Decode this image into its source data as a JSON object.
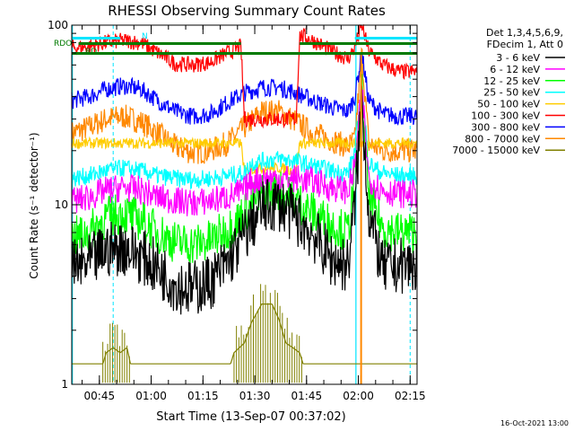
{
  "chart_data": {
    "type": "line",
    "title": "RHESSI Observing Summary Count Rates",
    "xlabel": "Start Time (13-Sep-07 00:37:02)",
    "ylabel": "Count Rate (s⁻¹ detector⁻¹)",
    "yscale": "log",
    "ylim": [
      1,
      100
    ],
    "xlim_minutes": [
      0,
      100
    ],
    "x_ticks": [
      {
        "label": "00:45",
        "minute": 8
      },
      {
        "label": "01:00",
        "minute": 23
      },
      {
        "label": "01:15",
        "minute": 38
      },
      {
        "label": "01:30",
        "minute": 53
      },
      {
        "label": "01:45",
        "minute": 68
      },
      {
        "label": "02:00",
        "minute": 83
      },
      {
        "label": "02:15",
        "minute": 98
      }
    ],
    "y_ticks": [
      {
        "label": "1",
        "value": 1
      },
      {
        "label": "10",
        "value": 10
      },
      {
        "label": "100",
        "value": 100
      }
    ],
    "legend_header": [
      "Det 1,3,4,5,6,9,",
      "FDecim 1, Att 0"
    ],
    "legend_position": "right",
    "timestamp": "16-Oct-2021 13:00",
    "flags": [
      {
        "label": "RDO",
        "color": "#007a00"
      },
      {
        "label": "RD",
        "color": "#007a00"
      },
      {
        "label": "N",
        "color": "#00e5ff"
      }
    ],
    "series": [
      {
        "name": "3 - 6 keV",
        "color": "#000000",
        "x": [
          0,
          5,
          10,
          15,
          20,
          25,
          30,
          35,
          40,
          45,
          50,
          55,
          60,
          65,
          70,
          75,
          80,
          82,
          84,
          86,
          90,
          95,
          100
        ],
        "y": [
          4.4,
          4.7,
          5.6,
          5.8,
          5.2,
          4.4,
          3.6,
          3.4,
          3.7,
          4.7,
          6.8,
          9.5,
          10.2,
          8.5,
          6.8,
          5.0,
          4.6,
          10,
          40,
          9,
          4.4,
          4.6,
          4.6
        ]
      },
      {
        "name": "6 - 12 keV",
        "color": "#ff00ff",
        "x": [
          0,
          5,
          10,
          15,
          20,
          25,
          30,
          35,
          40,
          45,
          50,
          52,
          55,
          60,
          65,
          70,
          75,
          80,
          82,
          84,
          86,
          90,
          95,
          100
        ],
        "y": [
          10.5,
          11,
          12,
          12.5,
          12,
          11,
          10.5,
          10.2,
          10.5,
          11,
          12,
          13.5,
          14,
          14,
          14,
          13.5,
          12.5,
          12,
          16,
          45,
          14,
          12,
          11.5,
          11.5
        ]
      },
      {
        "name": "12 - 25 keV",
        "color": "#00ff00",
        "x": [
          0,
          5,
          10,
          15,
          20,
          25,
          30,
          35,
          40,
          45,
          50,
          55,
          60,
          65,
          70,
          75,
          80,
          82,
          84,
          86,
          90,
          95,
          100
        ],
        "y": [
          6.5,
          7,
          8.5,
          9,
          8.2,
          7,
          6.2,
          6,
          6.3,
          7.2,
          9,
          11.5,
          12,
          10.5,
          9,
          7.8,
          7,
          14,
          45,
          11,
          7.5,
          7,
          7
        ]
      },
      {
        "name": "25 - 50 keV",
        "color": "#00ffff",
        "x": [
          0,
          5,
          10,
          15,
          20,
          25,
          30,
          35,
          40,
          45,
          50,
          52,
          55,
          60,
          65,
          70,
          75,
          80,
          82,
          84,
          86,
          90,
          95,
          100
        ],
        "y": [
          14,
          14.5,
          15.5,
          16,
          15.5,
          14.5,
          14,
          13.8,
          14,
          14.5,
          15,
          17,
          17.5,
          18,
          17.5,
          16.5,
          15.5,
          15,
          20,
          45,
          17,
          15,
          14.5,
          14.5
        ]
      },
      {
        "name": "50 - 100 keV",
        "color": "#ffcc00",
        "x": [
          0,
          49,
          50,
          55,
          60,
          65,
          66,
          100
        ],
        "y": [
          22,
          22,
          15.5,
          16,
          16,
          15.5,
          22,
          22
        ]
      },
      {
        "name": "100 - 300 keV",
        "color": "#ff0000",
        "x": [
          0,
          5,
          10,
          15,
          20,
          25,
          30,
          35,
          40,
          45,
          49,
          50,
          65,
          66,
          70,
          75,
          80,
          82,
          84,
          86,
          90,
          95,
          100
        ],
        "y": [
          75,
          76,
          80,
          82,
          80,
          70,
          61,
          60,
          62,
          70,
          76,
          30,
          30,
          88,
          82,
          72,
          65,
          75,
          100,
          72,
          60,
          55,
          55
        ]
      },
      {
        "name": "300 - 800 keV",
        "color": "#0000ff",
        "x": [
          0,
          5,
          10,
          15,
          20,
          25,
          30,
          35,
          40,
          45,
          50,
          55,
          60,
          65,
          70,
          75,
          80,
          82,
          84,
          86,
          90,
          95,
          100
        ],
        "y": [
          38,
          40,
          44,
          46,
          44,
          38,
          33,
          31,
          32,
          37,
          42,
          45,
          45,
          42,
          38,
          35,
          33,
          40,
          70,
          38,
          32,
          31,
          31
        ]
      },
      {
        "name": "800 - 7000 keV",
        "color": "#ff8800",
        "x": [
          0,
          5,
          10,
          15,
          20,
          25,
          30,
          35,
          40,
          45,
          50,
          55,
          60,
          65,
          70,
          75,
          80,
          82,
          84,
          86,
          90,
          95,
          100
        ],
        "y": [
          25,
          27,
          30,
          31,
          29,
          25,
          21,
          19.5,
          20,
          22,
          27,
          33,
          33,
          29,
          25,
          23,
          21,
          23,
          70,
          22,
          20,
          20,
          20
        ]
      },
      {
        "name": "7000 - 15000 keV",
        "color": "#808000",
        "x": [
          0,
          9,
          10,
          12,
          14,
          16,
          17,
          46,
          47,
          50,
          52,
          55,
          58,
          60,
          62,
          64,
          66,
          67,
          100
        ],
        "y": [
          1.3,
          1.3,
          1.5,
          1.6,
          1.5,
          1.6,
          1.3,
          1.3,
          1.5,
          1.7,
          2.2,
          2.8,
          2.8,
          2.3,
          1.7,
          1.6,
          1.5,
          1.3,
          1.3
        ]
      }
    ]
  }
}
